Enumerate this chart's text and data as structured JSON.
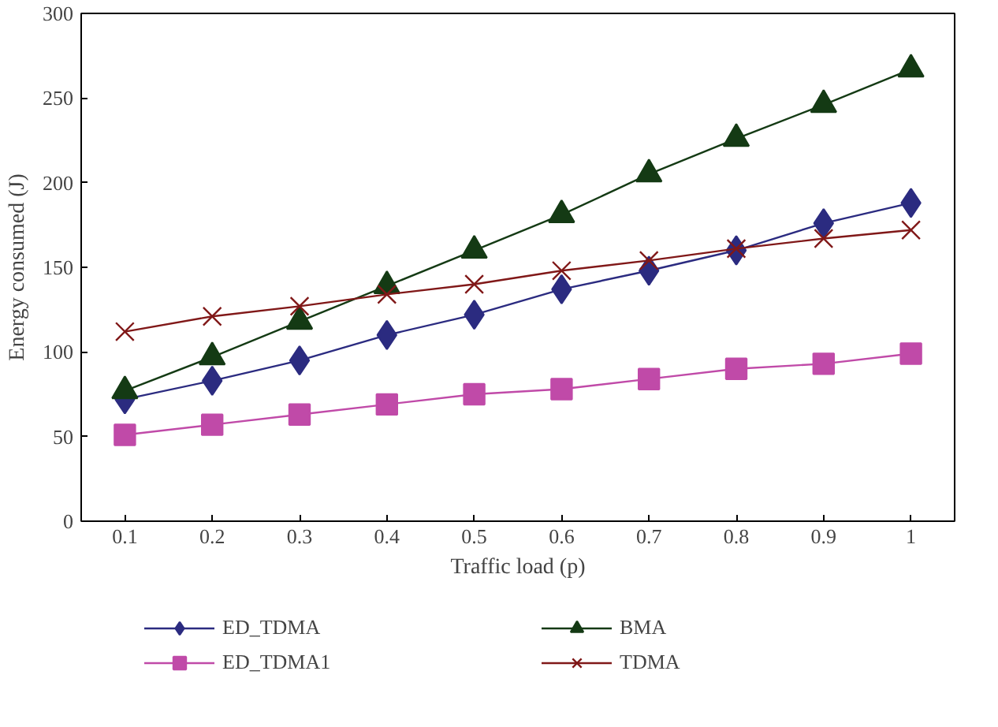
{
  "chart_data": {
    "type": "line",
    "xlabel": "Traffic load (p)",
    "ylabel": "Energy consumed (J)",
    "categories": [
      "0.1",
      "0.2",
      "0.3",
      "0.4",
      "0.5",
      "0.6",
      "0.7",
      "0.8",
      "0.9",
      "1"
    ],
    "ylim": [
      0,
      300
    ],
    "yticks": [
      0,
      50,
      100,
      150,
      200,
      250,
      300
    ],
    "grid": false,
    "legend": "bottom",
    "series": [
      {
        "name": "ED_TDMA",
        "color": "#2b2b80",
        "marker": "diamond",
        "values": [
          72,
          83,
          95,
          110,
          122,
          137,
          148,
          160,
          176,
          188
        ]
      },
      {
        "name": "ED_TDMA1",
        "color": "#c04aa8",
        "marker": "square",
        "values": [
          51,
          57,
          63,
          69,
          75,
          78,
          84,
          90,
          93,
          99
        ]
      },
      {
        "name": "BMA",
        "color": "#143a14",
        "marker": "triangle",
        "values": [
          77,
          97,
          118,
          139,
          160,
          181,
          205,
          226,
          246,
          267
        ]
      },
      {
        "name": "TDMA",
        "color": "#801818",
        "marker": "cross",
        "values": [
          112,
          121,
          127,
          134,
          140,
          148,
          154,
          161,
          167,
          172
        ]
      }
    ]
  }
}
